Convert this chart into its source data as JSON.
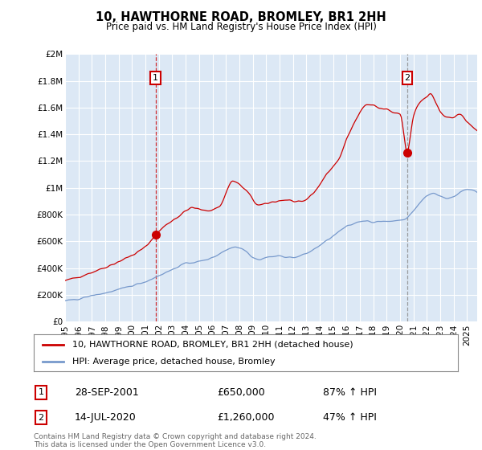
{
  "title": "10, HAWTHORNE ROAD, BROMLEY, BR1 2HH",
  "subtitle": "Price paid vs. HM Land Registry's House Price Index (HPI)",
  "background_color": "#dce8f5",
  "plot_bg_color": "#dce8f5",
  "red_line_color": "#cc0000",
  "blue_line_color": "#7799cc",
  "grid_color": "#ffffff",
  "ylim": [
    0,
    2000000
  ],
  "yticks": [
    0,
    200000,
    400000,
    600000,
    800000,
    1000000,
    1200000,
    1400000,
    1600000,
    1800000,
    2000000
  ],
  "ytick_labels": [
    "£0",
    "£200K",
    "£400K",
    "£600K",
    "£800K",
    "£1M",
    "£1.2M",
    "£1.4M",
    "£1.6M",
    "£1.8M",
    "£2M"
  ],
  "xlim_start": 1995.0,
  "xlim_end": 2025.75,
  "xtick_years": [
    1995,
    1996,
    1997,
    1998,
    1999,
    2000,
    2001,
    2002,
    2003,
    2004,
    2005,
    2006,
    2007,
    2008,
    2009,
    2010,
    2011,
    2012,
    2013,
    2014,
    2015,
    2016,
    2017,
    2018,
    2019,
    2020,
    2021,
    2022,
    2023,
    2024,
    2025
  ],
  "marker1_x": 2001.75,
  "marker1_y": 650000,
  "marker1_label": "1",
  "marker1_date": "28-SEP-2001",
  "marker1_price": "£650,000",
  "marker1_hpi": "87% ↑ HPI",
  "marker2_x": 2020.54,
  "marker2_y": 1260000,
  "marker2_label": "2",
  "marker2_date": "14-JUL-2020",
  "marker2_price": "£1,260,000",
  "marker2_hpi": "47% ↑ HPI",
  "legend_line1": "10, HAWTHORNE ROAD, BROMLEY, BR1 2HH (detached house)",
  "legend_line2": "HPI: Average price, detached house, Bromley",
  "footnote": "Contains HM Land Registry data © Crown copyright and database right 2024.\nThis data is licensed under the Open Government Licence v3.0."
}
